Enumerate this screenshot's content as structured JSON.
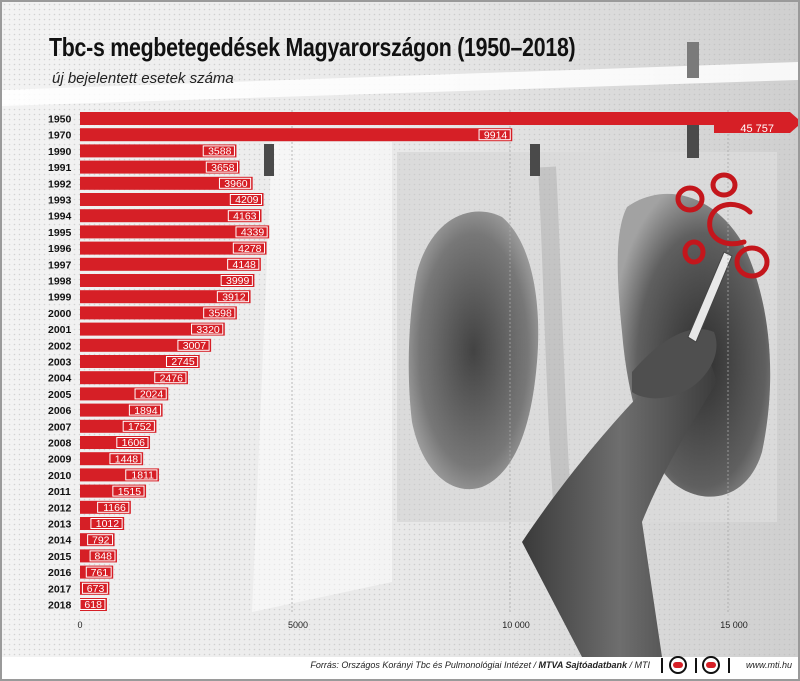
{
  "title": "Tbc-s megbetegedések Magyarországon (1950–2018)",
  "subtitle": "új bejelentett esetek száma",
  "chart_data": {
    "type": "bar",
    "orientation": "horizontal",
    "title": "Tbc-s megbetegedések Magyarországon (1950–2018)",
    "subtitle": "új bejelentett esetek száma",
    "categories": [
      "1950",
      "1970",
      "1990",
      "1991",
      "1992",
      "1993",
      "1994",
      "1995",
      "1996",
      "1997",
      "1998",
      "1999",
      "2000",
      "2001",
      "2002",
      "2003",
      "2004",
      "2005",
      "2006",
      "2007",
      "2008",
      "2009",
      "2010",
      "2011",
      "2012",
      "2013",
      "2014",
      "2015",
      "2016",
      "2017",
      "2018"
    ],
    "values": [
      45757,
      9914,
      3588,
      3658,
      3960,
      4209,
      4163,
      4339,
      4278,
      4148,
      3999,
      3912,
      3598,
      3320,
      3007,
      2745,
      2476,
      2024,
      1894,
      1752,
      1606,
      1448,
      1811,
      1515,
      1166,
      1012,
      792,
      848,
      761,
      673,
      618
    ],
    "value_labels": [
      "45 757",
      "9914",
      "3588",
      "3658",
      "3960",
      "4209",
      "4163",
      "4339",
      "4278",
      "4148",
      "3999",
      "3912",
      "3598",
      "3320",
      "3007",
      "2745",
      "2476",
      "2024",
      "1894",
      "1752",
      "1606",
      "1448",
      "1811",
      "1515",
      "1166",
      "1012",
      "792",
      "848",
      "761",
      "673",
      "618"
    ],
    "x_ticks": [
      0,
      5000,
      10000,
      15000
    ],
    "x_tick_labels": [
      "0",
      "5000",
      "10 000",
      "15 000"
    ],
    "xlim": [
      0,
      16500
    ],
    "truncated_bar": "1950",
    "grid": true,
    "bar_color": "#d61f26"
  },
  "footer": {
    "source_prefix": "Forrás: Országos Korányi Tbc és Pulmonológiai Intézet / ",
    "source_agency": "MTVA Sajtóadatbank",
    "source_suffix": " / MTI",
    "website": "www.mti.hu"
  },
  "annotations": {
    "marker_color": "#c4161c"
  }
}
